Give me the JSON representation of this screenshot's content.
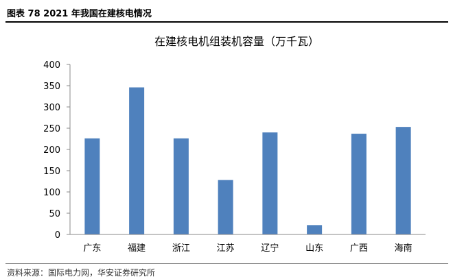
{
  "figure_label": "图表 78 2021 年我国在建核电情况",
  "source": "资料来源：国际电力网，华安证券研究所",
  "colors": {
    "bar": "#4f81bd",
    "axis": "#888888"
  },
  "chart_data": {
    "type": "bar",
    "title": "在建核电机组装机容量（万千瓦）",
    "categories": [
      "广东",
      "福建",
      "浙江",
      "江苏",
      "辽宁",
      "山东",
      "广西",
      "海南"
    ],
    "values": [
      226,
      346,
      226,
      128,
      240,
      22,
      237,
      253
    ],
    "ylim": [
      0,
      400
    ],
    "yticks": [
      "0",
      "50",
      "100",
      "150",
      "200",
      "250",
      "300",
      "350",
      "400"
    ],
    "grid": false,
    "legend": "none"
  }
}
